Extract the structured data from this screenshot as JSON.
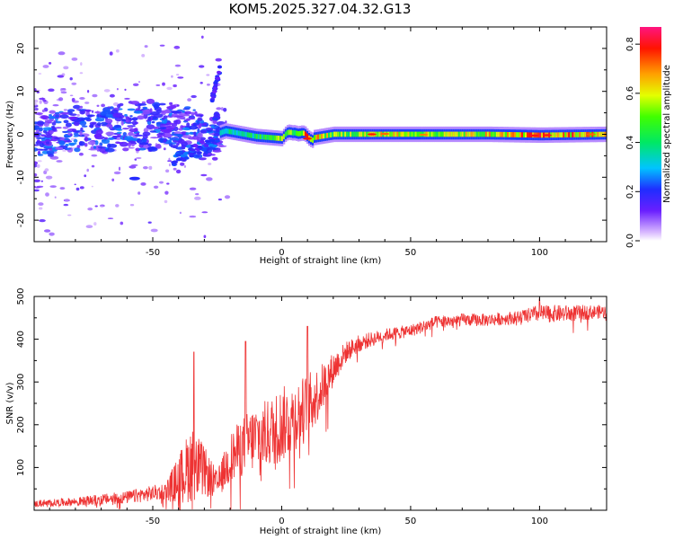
{
  "title": "KOM5.2025.327.04.32.G13",
  "chart_data": [
    {
      "type": "heatmap",
      "name": "spectrogram",
      "xlabel": "Height of straight line (km)",
      "ylabel": "Frequency (Hz)",
      "xlim": [
        -96,
        126
      ],
      "ylim": [
        -25,
        25
      ],
      "xticks": [
        -50,
        0,
        50,
        100
      ],
      "xtick_labels": [
        "-50",
        "0",
        "50",
        "100"
      ],
      "yticks": [
        -20,
        -10,
        0,
        10,
        20
      ],
      "ytick_labels": [
        "-20",
        "-10",
        "0",
        "10",
        "20"
      ],
      "colorbar": {
        "label": "Normalized spectral amplitude",
        "range": [
          0.0,
          0.87
        ],
        "ticks": [
          0.0,
          0.2,
          0.4,
          0.6,
          0.8
        ],
        "tick_labels": [
          "0.0",
          "0.2",
          "0.4",
          "0.6",
          "0.8"
        ]
      },
      "description_of_ridge": [
        {
          "x": -96,
          "freq": 0.0,
          "amp": 0.08
        },
        {
          "x": -60,
          "freq": 1.5,
          "amp": 0.12
        },
        {
          "x": -40,
          "freq": 2.5,
          "amp": 0.2
        },
        {
          "x": -30,
          "freq": -1.0,
          "amp": 0.25
        },
        {
          "x": -22,
          "freq": 0.8,
          "amp": 0.35
        },
        {
          "x": -10,
          "freq": -0.5,
          "amp": 0.4
        },
        {
          "x": 0,
          "freq": -1.0,
          "amp": 0.55
        },
        {
          "x": 5,
          "freq": 1.0,
          "amp": 0.5
        },
        {
          "x": 10,
          "freq": -1.0,
          "amp": 0.7
        },
        {
          "x": 20,
          "freq": 0.0,
          "amp": 0.5
        },
        {
          "x": 40,
          "freq": 0.0,
          "amp": 0.6
        },
        {
          "x": 60,
          "freq": 0.0,
          "amp": 0.55
        },
        {
          "x": 80,
          "freq": 0.0,
          "amp": 0.6
        },
        {
          "x": 100,
          "freq": -0.2,
          "amp": 0.7
        },
        {
          "x": 126,
          "freq": 0.0,
          "amp": 0.65
        }
      ]
    },
    {
      "type": "line",
      "name": "snr",
      "xlabel": "Height of straight line (km)",
      "ylabel": "SNR (v/v)",
      "xlim": [
        -96,
        126
      ],
      "ylim": [
        0,
        500
      ],
      "xticks": [
        -50,
        0,
        50,
        100
      ],
      "xtick_labels": [
        "-50",
        "0",
        "50",
        "100"
      ],
      "yticks": [
        100,
        200,
        300,
        400,
        500
      ],
      "ytick_labels": [
        "100",
        "200",
        "300",
        "400",
        "500"
      ],
      "color": "#ee3333",
      "envelope": {
        "x": [
          -96,
          -80,
          -60,
          -45,
          -40,
          -35,
          -30,
          -25,
          -20,
          -15,
          -10,
          -5,
          0,
          5,
          10,
          15,
          20,
          25,
          30,
          40,
          50,
          60,
          70,
          80,
          90,
          100,
          110,
          126
        ],
        "base": [
          15,
          20,
          30,
          45,
          70,
          110,
          90,
          60,
          120,
          150,
          170,
          180,
          200,
          220,
          240,
          280,
          330,
          370,
          390,
          410,
          420,
          440,
          445,
          445,
          450,
          460,
          460,
          465
        ],
        "noise": [
          8,
          10,
          15,
          20,
          60,
          90,
          60,
          30,
          60,
          70,
          80,
          80,
          90,
          80,
          80,
          60,
          40,
          25,
          20,
          15,
          15,
          15,
          15,
          15,
          15,
          20,
          20,
          15
        ]
      },
      "notable_peaks": [
        {
          "x": -34,
          "y": 370
        },
        {
          "x": -14,
          "y": 395
        },
        {
          "x": 10,
          "y": 430
        },
        {
          "x": 100,
          "y": 495
        }
      ]
    }
  ]
}
